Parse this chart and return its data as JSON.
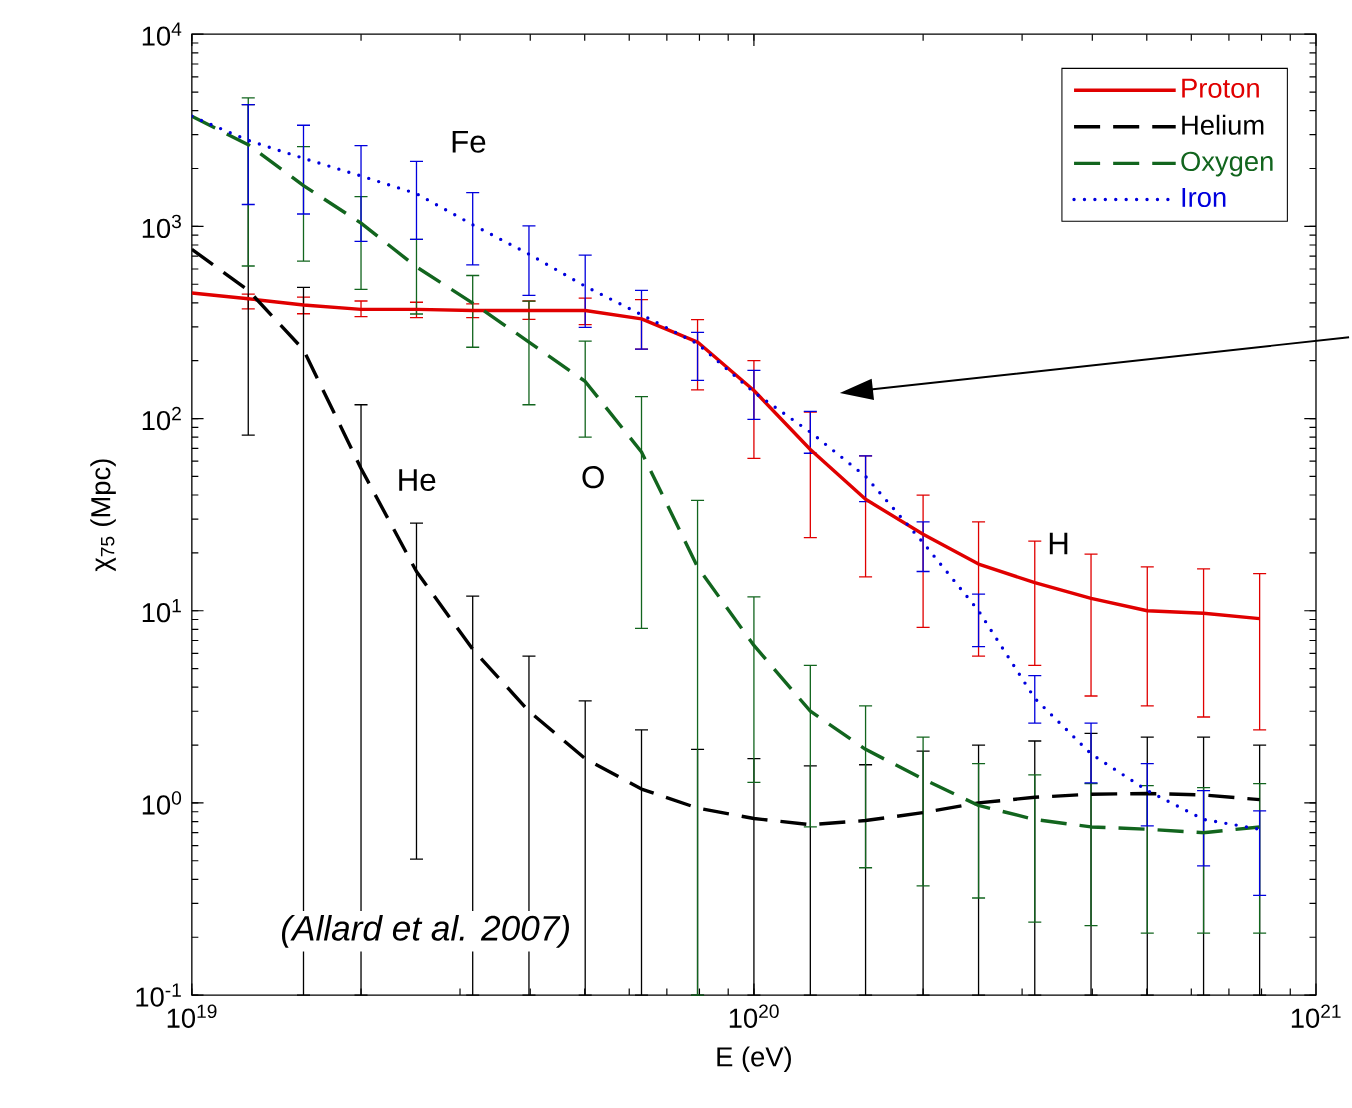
{
  "chart_data": {
    "type": "line",
    "xlabel": "E (eV)",
    "ylabel": "χ$_{75}$ (Mpc)",
    "log": "xy",
    "grid": false,
    "legend": "top right",
    "xlim": [
      1e+19,
      1e+21
    ],
    "ylim": [
      0.1,
      10000
    ],
    "xticks": [
      {
        "value": 1e+19,
        "label": "10$^{19}$"
      },
      {
        "value": 1e+20,
        "label": "10$^{20}$"
      },
      {
        "value": 1e+21,
        "label": "10$^{21}$"
      }
    ],
    "yticks": [
      {
        "value": 0.1,
        "label": "10$^{-1}$"
      },
      {
        "value": 1,
        "label": "10$^{0}$"
      },
      {
        "value": 10,
        "label": "10$^{1}$"
      },
      {
        "value": 100,
        "label": "10$^{2}$"
      },
      {
        "value": 1000,
        "label": "10$^{3}$"
      },
      {
        "value": 10000,
        "label": "10$^{4}$"
      }
    ],
    "x": [
      1e+19,
      1.26e+19,
      1.58e+19,
      2e+19,
      2.51e+19,
      3.16e+19,
      3.98e+19,
      5.01e+19,
      6.31e+19,
      7.94e+19,
      1e+20,
      1.26e+20,
      1.58e+20,
      2e+20,
      2.51e+20,
      3.16e+20,
      3.98e+20,
      5.01e+20,
      6.31e+20,
      7.94e+20
    ],
    "series": [
      {
        "name": "Proton",
        "color": "#e00000",
        "line_style": "solid",
        "values": [
          450,
          420,
          390,
          370,
          370,
          365,
          365,
          365,
          330,
          250,
          140,
          69,
          38,
          25,
          17.5,
          14,
          11.6,
          10,
          9.7,
          9.1
        ],
        "errors": [
          null,
          [
            372,
            444
          ],
          [
            351,
            428
          ],
          [
            339,
            409
          ],
          [
            335,
            403
          ],
          [
            335,
            395
          ],
          [
            328,
            409
          ],
          [
            308,
            423
          ],
          [
            230,
            416
          ],
          [
            141,
            327
          ],
          [
            62,
            200
          ],
          [
            24,
            108
          ],
          [
            15,
            64
          ],
          [
            8.2,
            40
          ],
          [
            5.8,
            29
          ],
          [
            5.2,
            23
          ],
          [
            3.6,
            19.7
          ],
          [
            3.2,
            16.9
          ],
          [
            2.8,
            16.5
          ],
          [
            2.4,
            15.6
          ]
        ]
      },
      {
        "name": "Helium",
        "color": "#000000",
        "line_style": "dashed",
        "values": [
          760,
          465,
          228,
          55,
          16,
          6.3,
          3.0,
          1.7,
          1.18,
          0.94,
          0.83,
          0.77,
          0.81,
          0.89,
          1.0,
          1.07,
          1.11,
          1.12,
          1.1,
          1.04
        ],
        "errors": [
          null,
          [
            82,
            4300
          ],
          [
            0.1,
            482
          ],
          [
            0.1,
            118
          ],
          [
            0.51,
            28.6
          ],
          [
            0.1,
            11.9
          ],
          [
            0.1,
            5.8
          ],
          [
            0.1,
            3.4
          ],
          [
            0.1,
            2.4
          ],
          [
            0.1,
            1.9
          ],
          [
            0.1,
            1.7
          ],
          [
            0.1,
            1.56
          ],
          [
            0.1,
            1.58
          ],
          [
            0.1,
            1.86
          ],
          [
            0.1,
            2.0
          ],
          [
            0.1,
            2.1
          ],
          [
            0.1,
            2.3
          ],
          [
            0.1,
            2.2
          ],
          [
            0.1,
            2.2
          ],
          [
            0.1,
            2.0
          ]
        ]
      },
      {
        "name": "Oxygen",
        "color": "#12651e",
        "line_style": "dashed",
        "values": [
          3740,
          2660,
          1630,
          1040,
          615,
          399,
          250,
          156,
          67,
          16.9,
          6.6,
          3.0,
          1.9,
          1.33,
          0.97,
          0.82,
          0.75,
          0.73,
          0.7,
          0.75
        ],
        "errors": [
          null,
          [
            622,
            4660
          ],
          [
            660,
            2600
          ],
          [
            470,
            1430
          ],
          [
            350,
            855
          ],
          [
            235,
            555
          ],
          [
            118,
            408
          ],
          [
            80,
            253
          ],
          [
            8.1,
            130
          ],
          [
            0.1,
            37.5
          ],
          [
            1.28,
            11.8
          ],
          [
            0.75,
            5.2
          ],
          [
            0.46,
            3.2
          ],
          [
            0.37,
            2.2
          ],
          [
            0.32,
            1.6
          ],
          [
            0.24,
            1.4
          ],
          [
            0.23,
            1.26
          ],
          [
            0.21,
            1.23
          ],
          [
            0.21,
            1.2
          ],
          [
            0.21,
            1.26
          ]
        ]
      },
      {
        "name": "Iron",
        "color": "#0000dd",
        "line_style": "dotted",
        "values": [
          3740,
          2800,
          2260,
          1830,
          1480,
          1020,
          717,
          488,
          347,
          245,
          137,
          85,
          50,
          22.6,
          10,
          3.5,
          1.8,
          1.16,
          0.82,
          0.73
        ],
        "errors": [
          null,
          [
            1300,
            4300
          ],
          [
            1160,
            3360
          ],
          [
            836,
            2630
          ],
          [
            855,
            2180
          ],
          [
            631,
            1500
          ],
          [
            438,
            1006
          ],
          [
            298,
            708
          ],
          [
            230,
            465
          ],
          [
            158,
            281
          ],
          [
            99,
            178
          ],
          [
            66,
            109
          ],
          [
            37,
            64
          ],
          [
            16,
            29
          ],
          [
            6.5,
            12.2
          ],
          [
            2.6,
            4.6
          ],
          [
            1.27,
            2.6
          ],
          [
            0.76,
            1.6
          ],
          [
            0.47,
            1.16
          ],
          [
            0.33,
            0.91
          ]
        ]
      }
    ],
    "annotations": [
      "Fe",
      "He",
      "O",
      "H",
      "(Allard et al. 2007)"
    ]
  }
}
